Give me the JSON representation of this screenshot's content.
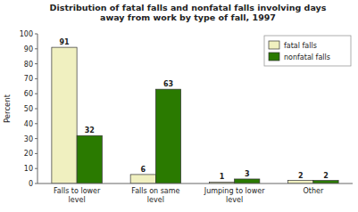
{
  "chart_data": {
    "type": "bar",
    "title": "Distribution of fatal falls and nonfatal falls involving days\naway from work by type of fall, 1997",
    "categories": [
      "Falls to lower\nlevel",
      "Falls on same\nlevel",
      "Jumping to lower\nlevel",
      "Other"
    ],
    "series": [
      {
        "name": "fatal falls",
        "color": "#f0f0c0",
        "values": [
          91,
          6,
          1,
          2
        ]
      },
      {
        "name": "nonfatal falls",
        "color": "#2a7a00",
        "values": [
          32,
          63,
          3,
          2
        ]
      }
    ],
    "y_label": "Percent",
    "ylim": [
      0,
      100
    ],
    "yticks": [
      0,
      10,
      20,
      30,
      40,
      50,
      60,
      70,
      80,
      90,
      100
    ],
    "grid": false,
    "legend": "upper right",
    "data_labels": true
  }
}
